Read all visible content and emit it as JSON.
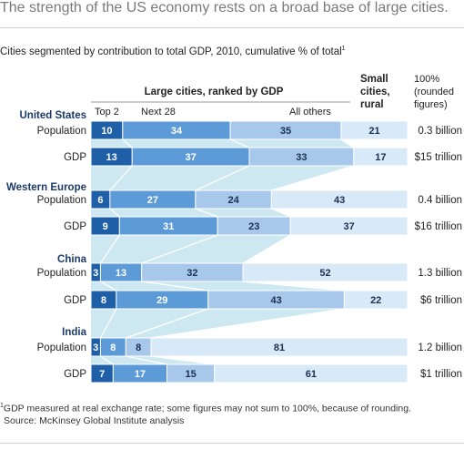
{
  "headline": "The strength of the US economy rests on a broad base of large cities.",
  "subtitle": "Cities segmented by contribution to total GDP, 2010, cumulative % of total",
  "subtitle_footnote_mark": "1",
  "footnote": "GDP measured at real exchange rate; some figures may not sum to 100%, because of rounding.",
  "footnote_mark": "1",
  "source": "Source: McKinsey Global Institute analysis",
  "colors": {
    "top2": "#1f5fa8",
    "next28": "#5d9ad8",
    "all_others": "#a8c8eb",
    "small_cities": "#d8eaf7",
    "connector": "#c9e6ef",
    "region_label": "#1b3a6b"
  },
  "chart_data": {
    "type": "bar",
    "orientation": "horizontal",
    "stacked": true,
    "headers": {
      "large_cities": "Large cities, ranked by GDP",
      "small_cities": "Small cities, rural",
      "total": "100% (rounded figures)"
    },
    "segments": [
      "Top 2",
      "Next 28",
      "All others",
      ""
    ],
    "regions": [
      {
        "name": "United States",
        "rows": [
          {
            "label": "Population",
            "values": [
              10,
              34,
              35,
              21
            ],
            "total": "0.3 billion"
          },
          {
            "label": "GDP",
            "values": [
              13,
              37,
              33,
              17
            ],
            "total": "$15 trillion"
          }
        ]
      },
      {
        "name": "Western Europe",
        "rows": [
          {
            "label": "Population",
            "values": [
              6,
              27,
              24,
              43
            ],
            "total": "0.4 billion"
          },
          {
            "label": "GDP",
            "values": [
              9,
              31,
              23,
              37
            ],
            "total": "$16 trillion"
          }
        ]
      },
      {
        "name": "China",
        "rows": [
          {
            "label": "Population",
            "values": [
              3,
              13,
              32,
              52
            ],
            "total": "1.3 billion"
          },
          {
            "label": "GDP",
            "values": [
              8,
              29,
              43,
              22
            ],
            "total": "$6 trillion"
          }
        ]
      },
      {
        "name": "India",
        "rows": [
          {
            "label": "Population",
            "values": [
              3,
              8,
              8,
              81
            ],
            "total": "1.2 billion"
          },
          {
            "label": "GDP",
            "values": [
              7,
              17,
              15,
              61
            ],
            "total": "$1 trillion"
          }
        ]
      }
    ]
  }
}
